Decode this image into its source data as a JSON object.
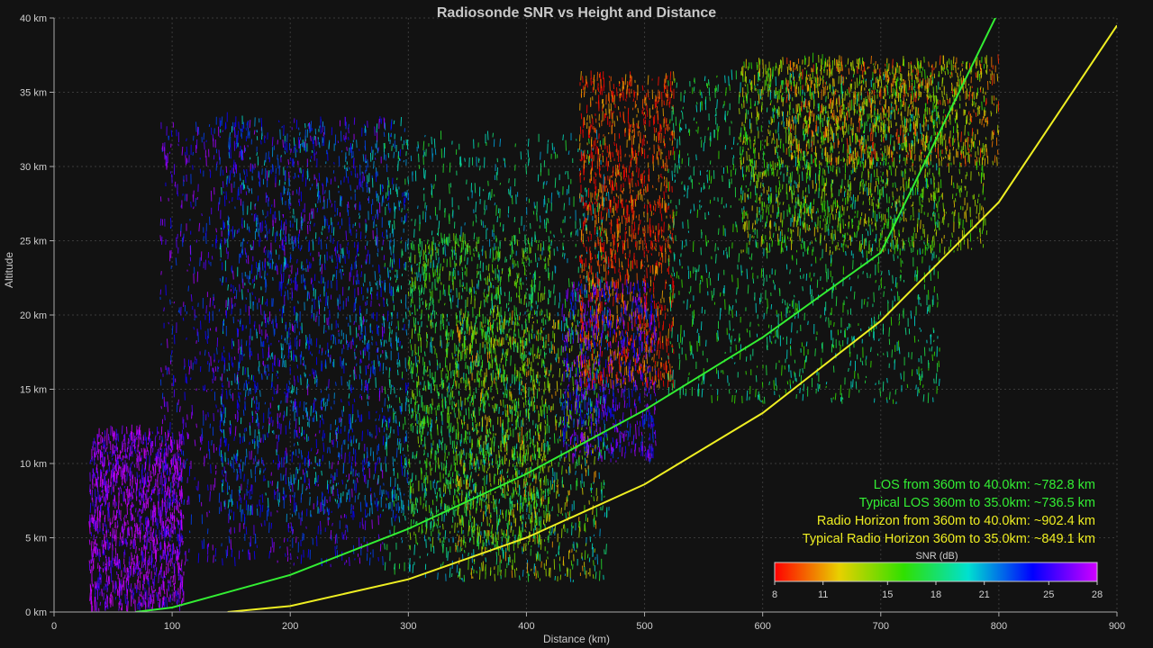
{
  "chart_data": {
    "type": "scatter",
    "title": "Radiosonde SNR vs Height and Distance",
    "xlabel": "Distance (km)",
    "ylabel": "Altitude",
    "xlim": [
      0,
      900
    ],
    "ylim": [
      0,
      40
    ],
    "x_ticks": [
      0,
      100,
      200,
      300,
      400,
      500,
      600,
      700,
      800,
      900
    ],
    "y_ticks": [
      0,
      5,
      10,
      15,
      20,
      25,
      30,
      35,
      40
    ],
    "y_tick_labels": [
      "0 km",
      "5 km",
      "10 km",
      "15 km",
      "20 km",
      "25 km",
      "30 km",
      "35 km",
      "40 km"
    ],
    "grid": true,
    "lines": [
      {
        "name": "LOS",
        "color": "#33ee33",
        "x": [
          69,
          100,
          200,
          300,
          400,
          500,
          600,
          700,
          800,
          794
        ],
        "y": [
          0,
          0.3,
          2.5,
          5.6,
          9.3,
          13.6,
          18.5,
          24.2,
          40.5,
          40
        ]
      },
      {
        "name": "Radio Horizon",
        "color": "#eeee22",
        "x": [
          147,
          200,
          300,
          400,
          500,
          600,
          700,
          800,
          900
        ],
        "y": [
          0,
          0.4,
          2.2,
          5.0,
          8.6,
          13.4,
          19.6,
          27.6,
          39.5
        ]
      }
    ],
    "point_clusters": [
      {
        "snr": 27,
        "x": [
          30,
          110
        ],
        "y": [
          0,
          12
        ],
        "density": "high"
      },
      {
        "snr": 25,
        "x": [
          90,
          280
        ],
        "y": [
          3,
          33
        ],
        "density": "high"
      },
      {
        "snr": 22,
        "x": [
          140,
          300
        ],
        "y": [
          6,
          33
        ],
        "density": "high"
      },
      {
        "snr": 19,
        "x": [
          280,
          470
        ],
        "y": [
          2,
          32
        ],
        "density": "high"
      },
      {
        "snr": 16,
        "x": [
          300,
          420
        ],
        "y": [
          4,
          25
        ],
        "density": "high"
      },
      {
        "snr": 13,
        "x": [
          340,
          460
        ],
        "y": [
          2,
          20
        ],
        "density": "medium"
      },
      {
        "snr": 9,
        "x": [
          445,
          525
        ],
        "y": [
          15,
          36
        ],
        "density": "high"
      },
      {
        "snr": 25,
        "x": [
          430,
          510
        ],
        "y": [
          10,
          22
        ],
        "density": "medium"
      },
      {
        "snr": 18,
        "x": [
          520,
          750
        ],
        "y": [
          14,
          36
        ],
        "density": "high"
      },
      {
        "snr": 14,
        "x": [
          580,
          790
        ],
        "y": [
          24,
          37
        ],
        "density": "high"
      },
      {
        "snr": 11,
        "x": [
          620,
          800
        ],
        "y": [
          30,
          37
        ],
        "density": "medium"
      }
    ],
    "annotations": [
      {
        "text": "LOS from 360m to 40.0km: ~782.8 km",
        "color": "#33ee33"
      },
      {
        "text": "Typical LOS 360m to 35.0km: ~736.5 km",
        "color": "#33ee33"
      },
      {
        "text": "Radio Horizon from 360m to 40.0km: ~902.4 km",
        "color": "#eeee22"
      },
      {
        "text": "Typical Radio Horizon 360m to 35.0km: ~849.1 km",
        "color": "#eeee22"
      }
    ],
    "colorbar": {
      "label": "SNR (dB)",
      "ticks": [
        8,
        11,
        15,
        18,
        21,
        25,
        28
      ],
      "range": [
        8,
        28
      ],
      "colors": [
        "#ff0000",
        "#e8d000",
        "#30e000",
        "#00e0d0",
        "#0000ff",
        "#d000ff"
      ]
    },
    "legend_position": "bottom-right"
  }
}
